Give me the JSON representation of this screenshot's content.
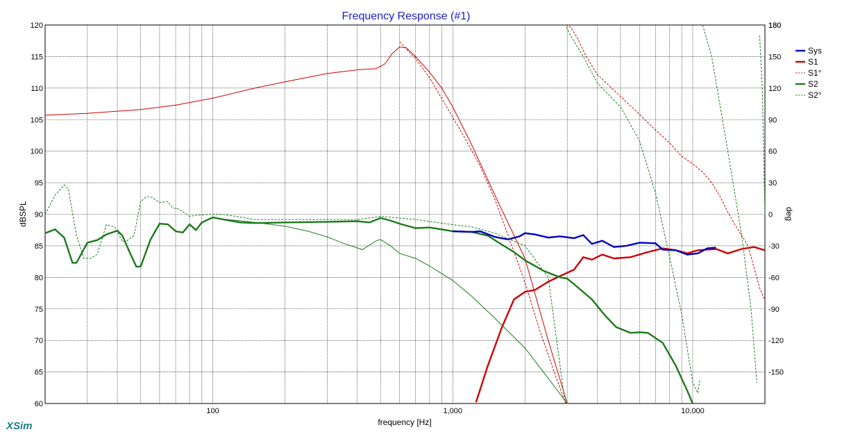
{
  "app": {
    "brand": "XSim"
  },
  "chart_data": {
    "type": "line",
    "title": "Frequency Response (#1)",
    "xlabel": "frequency [Hz]",
    "ylabel": "dBSPL",
    "y2label": "deg",
    "xscale": "log",
    "xlim": [
      20,
      20000
    ],
    "ylim": [
      60,
      120
    ],
    "y2lim": [
      -180,
      180
    ],
    "xticks": [
      {
        "value": 100,
        "label": "100"
      },
      {
        "value": 1000,
        "label": "1,000"
      },
      {
        "value": 10000,
        "label": "10,000"
      }
    ],
    "yticks": [
      {
        "value": 60,
        "label": "60"
      },
      {
        "value": 65,
        "label": "65"
      },
      {
        "value": 70,
        "label": "70"
      },
      {
        "value": 75,
        "label": "75"
      },
      {
        "value": 80,
        "label": "80"
      },
      {
        "value": 85,
        "label": "85"
      },
      {
        "value": 90,
        "label": "90"
      },
      {
        "value": 95,
        "label": "95"
      },
      {
        "value": 100,
        "label": "100"
      },
      {
        "value": 105,
        "label": "105"
      },
      {
        "value": 110,
        "label": "110"
      },
      {
        "value": 115,
        "label": "115"
      },
      {
        "value": 120,
        "label": "120"
      }
    ],
    "y2ticks": [
      {
        "value": -150,
        "label": "-150"
      },
      {
        "value": -120,
        "label": "-120"
      },
      {
        "value": -90,
        "label": "-90"
      },
      {
        "value": -60,
        "label": "-60"
      },
      {
        "value": -30,
        "label": "-30"
      },
      {
        "value": 0,
        "label": "0"
      },
      {
        "value": 30,
        "label": "30"
      },
      {
        "value": 60,
        "label": "60"
      },
      {
        "value": 90,
        "label": "90"
      },
      {
        "value": 120,
        "label": "120"
      },
      {
        "value": 150,
        "label": "150"
      },
      {
        "value": 180,
        "label": "180"
      }
    ],
    "grid": true,
    "legend_position": "right",
    "series": [
      {
        "name": "S1",
        "color": "#cc0000",
        "style": "solid",
        "width": "thin",
        "axis": "left",
        "points": [
          [
            20,
            105.7
          ],
          [
            30,
            106
          ],
          [
            50,
            106.6
          ],
          [
            70,
            107.3
          ],
          [
            100,
            108.4
          ],
          [
            150,
            110
          ],
          [
            200,
            111
          ],
          [
            300,
            112.3
          ],
          [
            400,
            112.9
          ],
          [
            480,
            113.1
          ],
          [
            520,
            113.8
          ],
          [
            560,
            115.5
          ],
          [
            600,
            116.5
          ],
          [
            640,
            116.4
          ],
          [
            700,
            115
          ],
          [
            800,
            112.5
          ],
          [
            900,
            110
          ],
          [
            1000,
            107
          ],
          [
            1200,
            101
          ],
          [
            1500,
            93
          ],
          [
            2000,
            83
          ],
          [
            2500,
            70
          ],
          [
            3000,
            60
          ]
        ]
      },
      {
        "name": "S1",
        "color": "#cc0000",
        "style": "solid",
        "width": "thick",
        "axis": "left",
        "points": [
          [
            1250,
            60.2
          ],
          [
            1400,
            66
          ],
          [
            1600,
            72
          ],
          [
            1800,
            76.5
          ],
          [
            2000,
            77.7
          ],
          [
            2200,
            78
          ],
          [
            2500,
            79.3
          ],
          [
            2800,
            80.2
          ],
          [
            3200,
            81.2
          ],
          [
            3500,
            83.2
          ],
          [
            3800,
            82.8
          ],
          [
            4200,
            83.6
          ],
          [
            4700,
            83
          ],
          [
            5500,
            83.2
          ],
          [
            6500,
            84
          ],
          [
            7500,
            84.6
          ],
          [
            8500,
            84.3
          ],
          [
            9500,
            83.8
          ],
          [
            10500,
            84.3
          ],
          [
            11500,
            84.4
          ],
          [
            12500,
            84.5
          ],
          [
            14000,
            83.8
          ],
          [
            16000,
            84.5
          ],
          [
            18000,
            84.8
          ],
          [
            20000,
            84.3
          ]
        ]
      },
      {
        "name": "S1°",
        "color": "#cc0000",
        "style": "dashed",
        "width": "thin",
        "axis": "right",
        "points": [
          [
            600,
            164
          ],
          [
            700,
            148
          ],
          [
            800,
            130
          ],
          [
            900,
            110
          ],
          [
            1000,
            92
          ],
          [
            1100,
            76
          ],
          [
            1300,
            46
          ],
          [
            1500,
            14
          ],
          [
            1700,
            -20
          ],
          [
            2000,
            -65
          ],
          [
            2300,
            -110
          ],
          [
            2600,
            -145
          ],
          [
            2950,
            -180
          ],
          [
            2960,
            180
          ],
          [
            3100,
            178
          ],
          [
            3300,
            168
          ],
          [
            3600,
            150
          ],
          [
            4000,
            133
          ],
          [
            5000,
            112
          ],
          [
            6000,
            95
          ],
          [
            7000,
            80
          ],
          [
            8000,
            68
          ],
          [
            9000,
            55
          ],
          [
            10000,
            48
          ],
          [
            11000,
            40
          ],
          [
            12000,
            30
          ],
          [
            13000,
            17
          ],
          [
            14000,
            2
          ],
          [
            15000,
            -10
          ],
          [
            17000,
            -30
          ],
          [
            19000,
            -70
          ],
          [
            20000,
            -82
          ]
        ]
      },
      {
        "name": "S2",
        "color": "#1a7a1a",
        "style": "solid",
        "width": "thin",
        "axis": "left",
        "points": [
          [
            100,
            89.4
          ],
          [
            150,
            88.7
          ],
          [
            200,
            88.1
          ],
          [
            250,
            87.3
          ],
          [
            300,
            86.4
          ],
          [
            350,
            85.4
          ],
          [
            420,
            84.4
          ],
          [
            480,
            85.8
          ],
          [
            500,
            86
          ],
          [
            550,
            85
          ],
          [
            600,
            83.8
          ],
          [
            700,
            83
          ],
          [
            800,
            81.8
          ],
          [
            1000,
            79.5
          ],
          [
            1200,
            77
          ],
          [
            1500,
            73.5
          ],
          [
            2000,
            68.8
          ],
          [
            2500,
            64
          ],
          [
            3000,
            60
          ]
        ]
      },
      {
        "name": "S2",
        "color": "#1a7a1a",
        "style": "solid",
        "width": "thick",
        "axis": "left",
        "points": [
          [
            20,
            87
          ],
          [
            22,
            87.6
          ],
          [
            24,
            86.3
          ],
          [
            26,
            82.3
          ],
          [
            27,
            82.3
          ],
          [
            30,
            85.5
          ],
          [
            33,
            85.9
          ],
          [
            36,
            86.8
          ],
          [
            40,
            87.4
          ],
          [
            42,
            86.6
          ],
          [
            45,
            84
          ],
          [
            48,
            81.7
          ],
          [
            50,
            81.7
          ],
          [
            55,
            86
          ],
          [
            60,
            88.5
          ],
          [
            65,
            88.4
          ],
          [
            70,
            87.3
          ],
          [
            75,
            87.1
          ],
          [
            80,
            88.4
          ],
          [
            85,
            87.5
          ],
          [
            90,
            88.7
          ],
          [
            100,
            89.5
          ],
          [
            110,
            89.2
          ],
          [
            130,
            88.7
          ],
          [
            150,
            88.6
          ],
          [
            200,
            88.7
          ],
          [
            300,
            88.8
          ],
          [
            400,
            88.9
          ],
          [
            450,
            88.7
          ],
          [
            500,
            89.4
          ],
          [
            550,
            89
          ],
          [
            600,
            88.5
          ],
          [
            700,
            87.8
          ],
          [
            800,
            87.9
          ],
          [
            900,
            87.6
          ],
          [
            1000,
            87.3
          ],
          [
            1200,
            87.2
          ],
          [
            1400,
            86.6
          ],
          [
            1600,
            85.2
          ],
          [
            1800,
            84
          ],
          [
            2000,
            82.7
          ],
          [
            2400,
            81
          ],
          [
            2800,
            80
          ],
          [
            3000,
            79.8
          ],
          [
            3300,
            78.5
          ],
          [
            3800,
            76.5
          ],
          [
            4300,
            74
          ],
          [
            4800,
            72.1
          ],
          [
            5500,
            71.2
          ],
          [
            6000,
            71.3
          ],
          [
            6500,
            71.2
          ],
          [
            7500,
            69.6
          ],
          [
            8500,
            66
          ],
          [
            9500,
            62
          ],
          [
            10000,
            60
          ]
        ]
      },
      {
        "name": "Sys",
        "color": "#0000c0",
        "style": "solid",
        "width": "thick",
        "axis": "left",
        "points": [
          [
            1000,
            87.3
          ],
          [
            1200,
            87.2
          ],
          [
            1300,
            87.3
          ],
          [
            1500,
            86.4
          ],
          [
            1700,
            86
          ],
          [
            1900,
            86.5
          ],
          [
            2000,
            87
          ],
          [
            2200,
            86.8
          ],
          [
            2500,
            86.3
          ],
          [
            2800,
            86.5
          ],
          [
            3200,
            86.2
          ],
          [
            3500,
            86.7
          ],
          [
            3800,
            85.3
          ],
          [
            4200,
            85.8
          ],
          [
            4700,
            84.8
          ],
          [
            5300,
            85
          ],
          [
            6000,
            85.5
          ],
          [
            7000,
            85.4
          ],
          [
            7500,
            84.4
          ],
          [
            8500,
            84.3
          ],
          [
            9500,
            83.6
          ],
          [
            10500,
            83.8
          ],
          [
            11500,
            84.6
          ],
          [
            12500,
            84.7
          ]
        ]
      },
      {
        "name": "S2°",
        "color": "#1a7a1a",
        "style": "dashed",
        "width": "thin",
        "axis": "right",
        "points": [
          [
            20,
            0
          ],
          [
            22,
            18
          ],
          [
            24,
            28
          ],
          [
            25,
            24
          ],
          [
            27,
            -20
          ],
          [
            29,
            -42
          ],
          [
            31,
            -42
          ],
          [
            33,
            -38
          ],
          [
            36,
            -10
          ],
          [
            39,
            -12
          ],
          [
            42,
            -26
          ],
          [
            44,
            -25
          ],
          [
            47,
            -20
          ],
          [
            50,
            12
          ],
          [
            53,
            17
          ],
          [
            56,
            16
          ],
          [
            60,
            11
          ],
          [
            65,
            12
          ],
          [
            68,
            6
          ],
          [
            72,
            5
          ],
          [
            80,
            -2
          ],
          [
            85,
            -1
          ],
          [
            100,
            0
          ],
          [
            110,
            0
          ],
          [
            150,
            -5
          ],
          [
            200,
            -5
          ],
          [
            400,
            -5
          ],
          [
            500,
            -2
          ],
          [
            700,
            -5
          ],
          [
            1000,
            -10
          ],
          [
            1200,
            -12
          ],
          [
            1500,
            -18
          ],
          [
            2000,
            -30
          ],
          [
            2500,
            -60
          ],
          [
            2900,
            -170
          ],
          [
            2960,
            -180
          ],
          [
            2970,
            178
          ],
          [
            3100,
            170
          ],
          [
            3500,
            150
          ],
          [
            4000,
            125
          ],
          [
            5000,
            102
          ],
          [
            6000,
            70
          ],
          [
            7000,
            20
          ],
          [
            8000,
            -40
          ],
          [
            9000,
            -95
          ],
          [
            10000,
            -160
          ],
          [
            10500,
            -170
          ],
          [
            10700,
            -158
          ],
          [
            11000,
            180
          ],
          [
            12000,
            150
          ],
          [
            14000,
            60
          ],
          [
            16000,
            -20
          ],
          [
            17500,
            -90
          ],
          [
            18500,
            -160
          ],
          [
            19000,
            170
          ],
          [
            19500,
            120
          ],
          [
            20000,
            0
          ]
        ]
      }
    ]
  },
  "legend": [
    {
      "label": "Sys",
      "color": "#0000c0",
      "style": "solid",
      "width": "thick"
    },
    {
      "label": "S1",
      "color": "#cc0000",
      "style": "solid",
      "width": "thick"
    },
    {
      "label": "S1°",
      "color": "#cc0000",
      "style": "dashed",
      "width": "thin"
    },
    {
      "label": "S2",
      "color": "#1a7a1a",
      "style": "solid",
      "width": "thick"
    },
    {
      "label": "S2°",
      "color": "#1a7a1a",
      "style": "dashed",
      "width": "thin"
    }
  ]
}
